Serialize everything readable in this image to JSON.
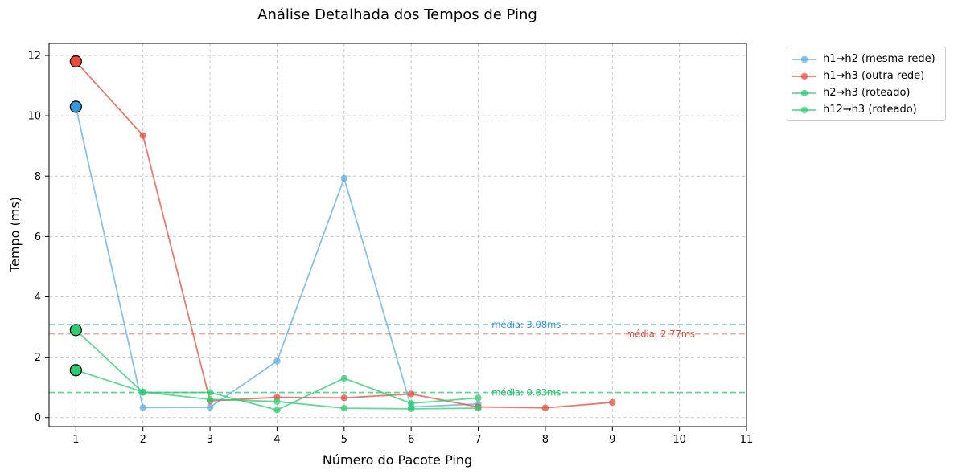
{
  "chart_data": {
    "type": "line",
    "title": "Análise Detalhada dos Tempos de Ping",
    "xlabel": "Número do Pacote Ping",
    "ylabel": "Tempo (ms)",
    "xlim": [
      0.6,
      11
    ],
    "ylim": [
      -0.3,
      12.4
    ],
    "xticks": [
      1,
      2,
      3,
      4,
      5,
      6,
      7,
      8,
      9,
      10,
      11
    ],
    "yticks": [
      0,
      2,
      4,
      6,
      8,
      10,
      12
    ],
    "grid": true,
    "legend_position": "outside-top-right",
    "series": [
      {
        "name": "h1→h2 (mesma rede)",
        "color": "#5dade2",
        "x": [
          1,
          2,
          3,
          4,
          5,
          6,
          7
        ],
        "y": [
          10.3,
          0.33,
          0.34,
          1.87,
          7.93,
          0.35,
          0.45
        ]
      },
      {
        "name": "h1→h3 (outra rede)",
        "color": "#e74c3c",
        "x": [
          1,
          2,
          3,
          4,
          5,
          6,
          7,
          8,
          9
        ],
        "y": [
          11.8,
          9.35,
          0.55,
          0.67,
          0.65,
          0.78,
          0.35,
          0.32,
          0.5
        ]
      },
      {
        "name": "h2→h3 (roteado)",
        "color": "#2ecc71",
        "x": [
          1,
          2,
          3,
          4,
          5,
          6,
          7
        ],
        "y": [
          2.9,
          0.83,
          0.83,
          0.25,
          1.3,
          0.47,
          0.65
        ]
      },
      {
        "name": "h12→h3 (roteado)",
        "color": "#2ecc71",
        "x": [
          1,
          2,
          3,
          4,
          5,
          6,
          7
        ],
        "y": [
          1.57,
          0.85,
          0.6,
          0.53,
          0.31,
          0.29,
          0.31
        ]
      }
    ],
    "first_point_markers": [
      {
        "series": "h1→h2 (mesma rede)",
        "x": 1,
        "y": 10.3,
        "color": "#3498db"
      },
      {
        "series": "h1→h3 (outra rede)",
        "x": 1,
        "y": 11.8,
        "color": "#e74c3c"
      },
      {
        "series": "h2→h3 (roteado)",
        "x": 1,
        "y": 2.9,
        "color": "#2ecc71"
      },
      {
        "series": "h12→h3 (roteado)",
        "x": 1,
        "y": 1.57,
        "color": "#2ecc71"
      }
    ],
    "mean_lines": [
      {
        "value": 3.08,
        "color": "#5dade2",
        "label": "média: 3.08ms",
        "label_x": 7.2,
        "text_color": "#3498db"
      },
      {
        "value": 2.77,
        "color": "#f1948a",
        "label": "média: 2.77ms",
        "label_x": 9.2,
        "text_color": "#e74c3c"
      },
      {
        "value": 0.83,
        "color": "#58d68d",
        "label": "média: 0.83ms",
        "label_x": 7.2,
        "text_color": "#2ecc71"
      },
      {
        "value": 0.83,
        "color": "#58d68d",
        "label": "média: 0.83ms",
        "label_x": 7.2,
        "text_color": "#2ecc71"
      }
    ]
  }
}
